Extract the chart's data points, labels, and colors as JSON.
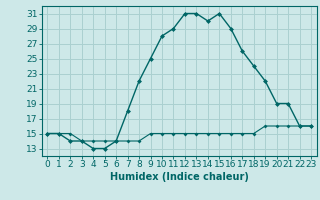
{
  "xlabel": "Humidex (Indice chaleur)",
  "ylabel": "",
  "bg_color": "#cde8e8",
  "grid_color": "#aad0d0",
  "line_color": "#006666",
  "hours": [
    0,
    1,
    2,
    3,
    4,
    5,
    6,
    7,
    8,
    9,
    10,
    11,
    12,
    13,
    14,
    15,
    16,
    17,
    18,
    19,
    20,
    21,
    22,
    23
  ],
  "humidex": [
    15,
    15,
    14,
    14,
    13,
    13,
    14,
    18,
    22,
    25,
    28,
    29,
    31,
    31,
    30,
    31,
    29,
    26,
    24,
    22,
    19,
    19,
    16,
    16
  ],
  "baseline": [
    15,
    15,
    15,
    14,
    14,
    14,
    14,
    14,
    14,
    15,
    15,
    15,
    15,
    15,
    15,
    15,
    15,
    15,
    15,
    16,
    16,
    16,
    16,
    16
  ],
  "ylim": [
    12,
    32
  ],
  "yticks": [
    13,
    15,
    17,
    19,
    21,
    23,
    25,
    27,
    29,
    31
  ],
  "xticks": [
    0,
    1,
    2,
    3,
    4,
    5,
    6,
    7,
    8,
    9,
    10,
    11,
    12,
    13,
    14,
    15,
    16,
    17,
    18,
    19,
    20,
    21,
    22,
    23
  ],
  "font_size": 6.5,
  "marker_size": 2.5
}
